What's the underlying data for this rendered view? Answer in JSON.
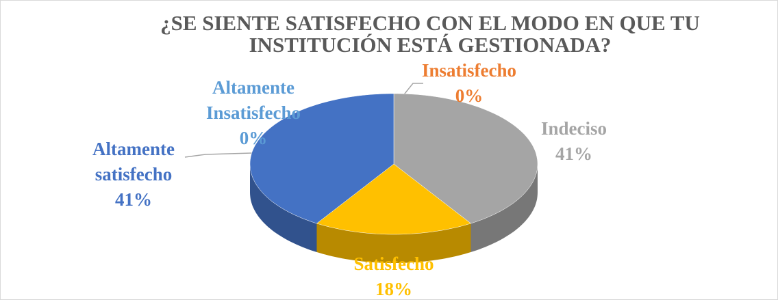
{
  "chart_data": {
    "type": "pie3d",
    "title": "¿SE SIENTE SATISFECHO CON EL MODO EN QUE TU INSTITUCIÓN ESTÁ GESTIONADA?",
    "categories": [
      "Altamente Insatisfecho",
      "Insatisfecho",
      "Indeciso",
      "Satisfecho",
      "Altamente satisfecho"
    ],
    "values": [
      0,
      0,
      41,
      18,
      41
    ],
    "value_labels": [
      "0%",
      "0%",
      "41%",
      "18%",
      "41%"
    ],
    "colors": [
      "#5b9bd5",
      "#ed7d31",
      "#a5a5a5",
      "#ffc000",
      "#4472c4"
    ]
  }
}
